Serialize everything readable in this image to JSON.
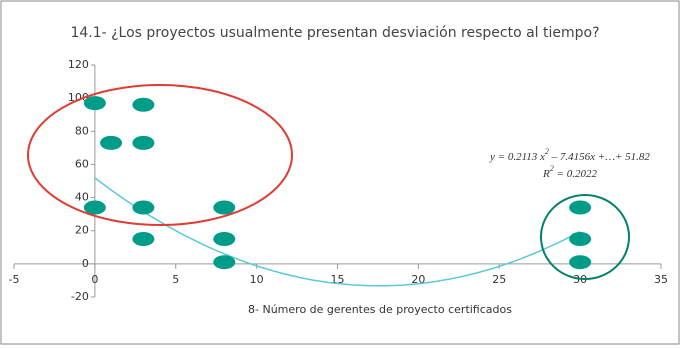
{
  "chart_data": {
    "type": "scatter",
    "title": "14.1- ¿Los proyectos usualmente presentan desviación respecto al tiempo?",
    "x_label": "8- Número de gerentes de proyecto certificados",
    "x": [
      0,
      3,
      1,
      3,
      0,
      3,
      8,
      3,
      8,
      8,
      30,
      30,
      30
    ],
    "values": [
      97,
      96,
      73,
      73,
      34,
      34,
      34,
      15,
      15,
      1,
      34,
      15,
      1
    ],
    "color": "#009c8a",
    "xlim": [
      -5,
      35
    ],
    "xticks": [
      -5,
      0,
      5,
      10,
      15,
      20,
      25,
      30,
      35
    ],
    "ylim": [
      -20,
      120
    ],
    "yticks": [
      -20,
      0,
      20,
      40,
      60,
      80,
      100,
      120
    ],
    "trendline": {
      "coefficients": [
        0.2113,
        -7.4156,
        51.82
      ],
      "range": [
        0,
        30
      ],
      "color": "#5bc8dc",
      "equation": {
        "prefix": "y = 0.2113 x",
        "sup": "2",
        "suffix": " – 7.4156x +…+ 51.82"
      },
      "r2": {
        "prefix": "R",
        "sup": "2",
        "suffix": " = 0.2022"
      }
    }
  }
}
